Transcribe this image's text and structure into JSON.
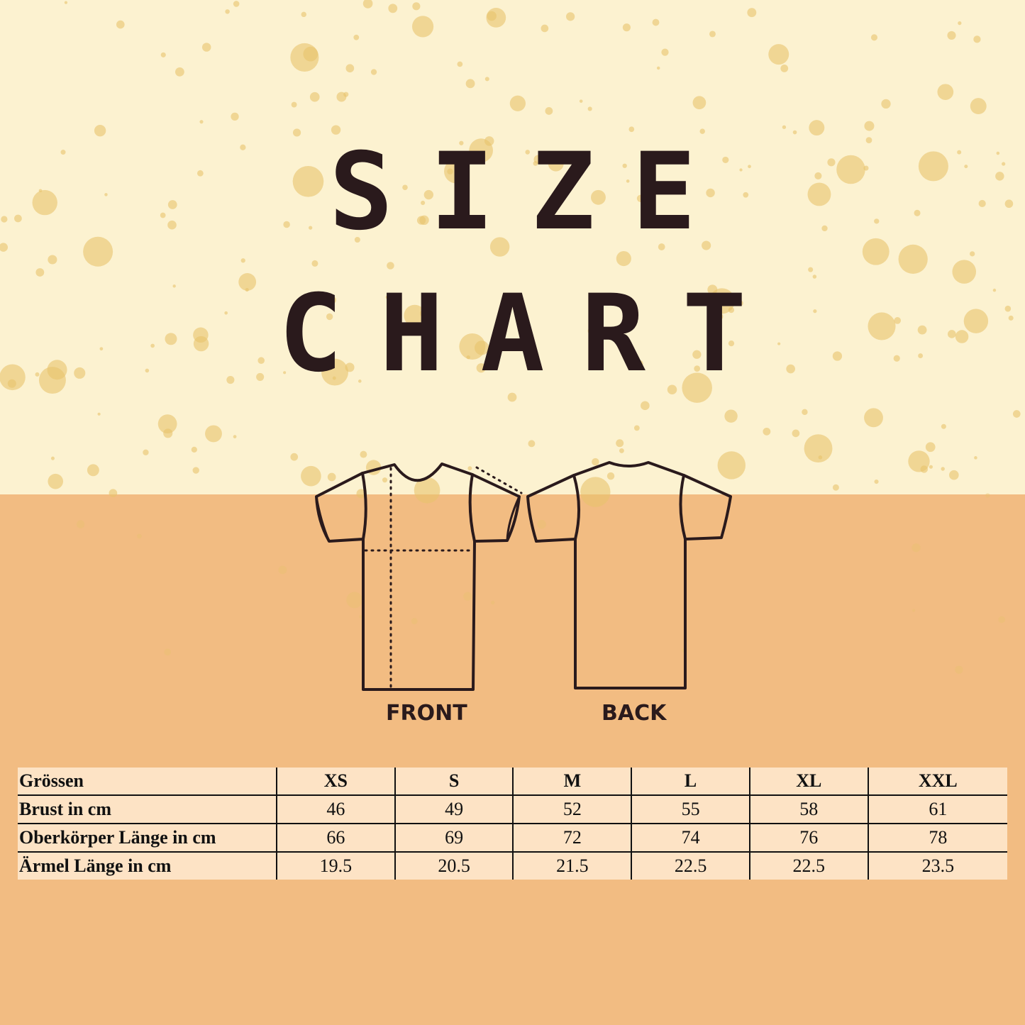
{
  "title": {
    "line1": "SIZE",
    "line2": "CHART"
  },
  "diagram": {
    "front_label": "FRONT",
    "back_label": "BACK"
  },
  "colors": {
    "top_background": "#fcf2d0",
    "bottom_background": "#f2bc82",
    "table_background": "#fde3c5",
    "ink": "#2a1a1c",
    "spatter": "#e8c36c"
  },
  "table": {
    "header": [
      "Grössen",
      "XS",
      "S",
      "M",
      "L",
      "XL",
      "XXL"
    ],
    "rows": [
      [
        "Brust in cm",
        "46",
        "49",
        "52",
        "55",
        "58",
        "61"
      ],
      [
        "Oberkörper Länge in cm",
        "66",
        "69",
        "72",
        "74",
        "76",
        "78"
      ],
      [
        "Ärmel Länge in cm",
        "19.5",
        "20.5",
        "21.5",
        "22.5",
        "22.5",
        "23.5"
      ]
    ]
  }
}
